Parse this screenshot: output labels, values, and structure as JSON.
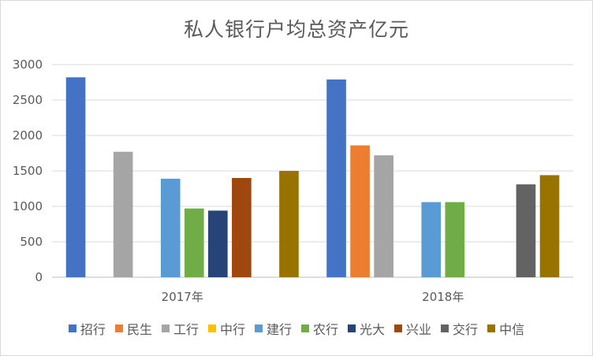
{
  "chart_data": {
    "type": "bar",
    "title": "私人银行户均总资产亿元",
    "categories": [
      "2017年",
      "2018年"
    ],
    "ylim": [
      0,
      3000
    ],
    "yticks": [
      0,
      500,
      1000,
      1500,
      2000,
      2500,
      3000
    ],
    "grid": true,
    "legend_position": "bottom",
    "series": [
      {
        "name": "招行",
        "color": "#4472c4",
        "values": [
          2820,
          2790
        ]
      },
      {
        "name": "民生",
        "color": "#ed7d31",
        "values": [
          null,
          1860
        ]
      },
      {
        "name": "工行",
        "color": "#a5a5a5",
        "values": [
          1770,
          1720
        ]
      },
      {
        "name": "中行",
        "color": "#ffc000",
        "values": [
          null,
          null
        ]
      },
      {
        "name": "建行",
        "color": "#5b9bd5",
        "values": [
          1390,
          1060
        ]
      },
      {
        "name": "农行",
        "color": "#70ad47",
        "values": [
          970,
          1060
        ]
      },
      {
        "name": "光大",
        "color": "#264478",
        "values": [
          940,
          null
        ]
      },
      {
        "name": "兴业",
        "color": "#9e480e",
        "values": [
          1400,
          null
        ]
      },
      {
        "name": "交行",
        "color": "#636363",
        "values": [
          null,
          1310
        ]
      },
      {
        "name": "中信",
        "color": "#997300",
        "values": [
          1500,
          1440
        ]
      }
    ]
  }
}
